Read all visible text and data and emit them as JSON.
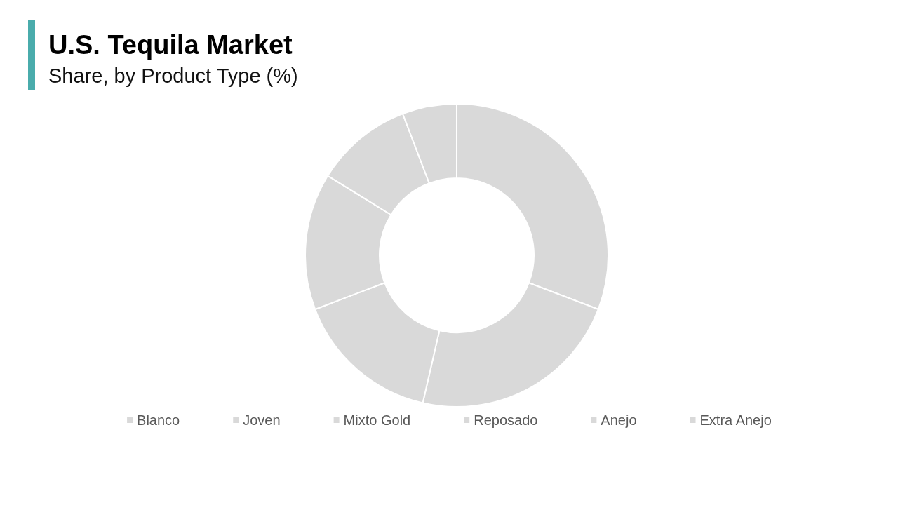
{
  "chart_data": {
    "type": "donut",
    "title": "U.S. Tequila Market",
    "subtitle": "Share, by Product Type (%)",
    "categories": [
      "Blanco",
      "Joven",
      "Mixto Gold",
      "Reposado",
      "Anejo",
      "Extra Anejo"
    ],
    "values": [
      30.8,
      22.8,
      15.6,
      14.6,
      10.4,
      5.8
    ],
    "colors": [
      "#d9d9d9",
      "#d9d9d9",
      "#d9d9d9",
      "#d9d9d9",
      "#d9d9d9",
      "#d9d9d9"
    ],
    "legend": "bottom"
  }
}
